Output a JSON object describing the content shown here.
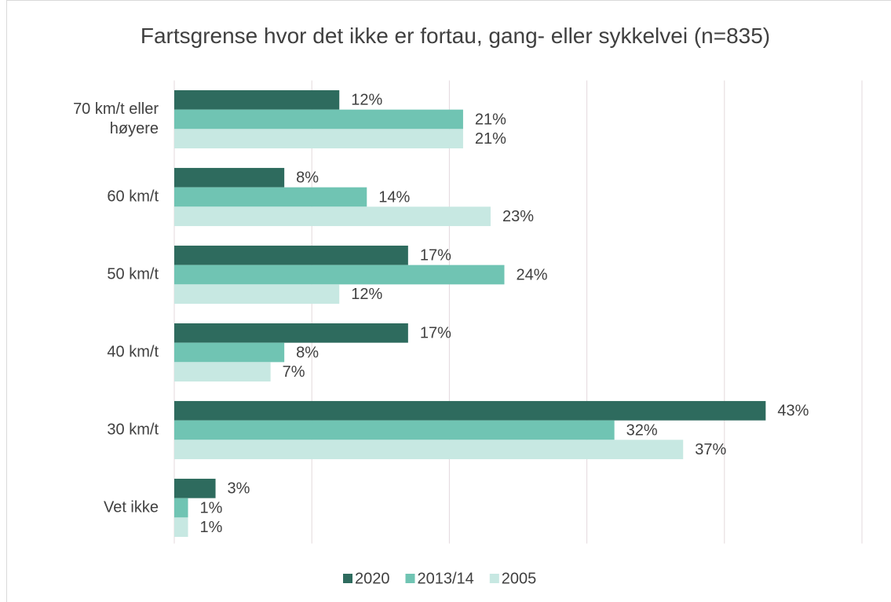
{
  "chart_data": {
    "type": "barh",
    "title": "Fartsgrense hvor det ikke er fortau, gang- eller sykkelvei (n=835)",
    "categories": [
      "70 km/t eller høyere",
      "60 km/t",
      "50 km/t",
      "40 km/t",
      "30 km/t",
      "Vet ikke"
    ],
    "series": [
      {
        "name": "2020",
        "color": "#2e6b5e",
        "values": [
          12,
          8,
          17,
          17,
          43,
          3
        ],
        "value_labels": [
          "12%",
          "8%",
          "17%",
          "17%",
          "43%",
          "3%"
        ]
      },
      {
        "name": "2013/14",
        "color": "#70c4b3",
        "values": [
          21,
          14,
          24,
          8,
          32,
          1
        ],
        "value_labels": [
          "21%",
          "14%",
          "24%",
          "8%",
          "32%",
          "1%"
        ]
      },
      {
        "name": "2005",
        "color": "#c7e8e2",
        "values": [
          21,
          23,
          12,
          7,
          37,
          1
        ],
        "value_labels": [
          "21%",
          "23%",
          "12%",
          "7%",
          "37%",
          "1%"
        ]
      }
    ],
    "xlim": [
      0,
      50
    ],
    "xticks": [
      0,
      10,
      20,
      30,
      40,
      50
    ],
    "grid": true,
    "legend": "bottom"
  }
}
